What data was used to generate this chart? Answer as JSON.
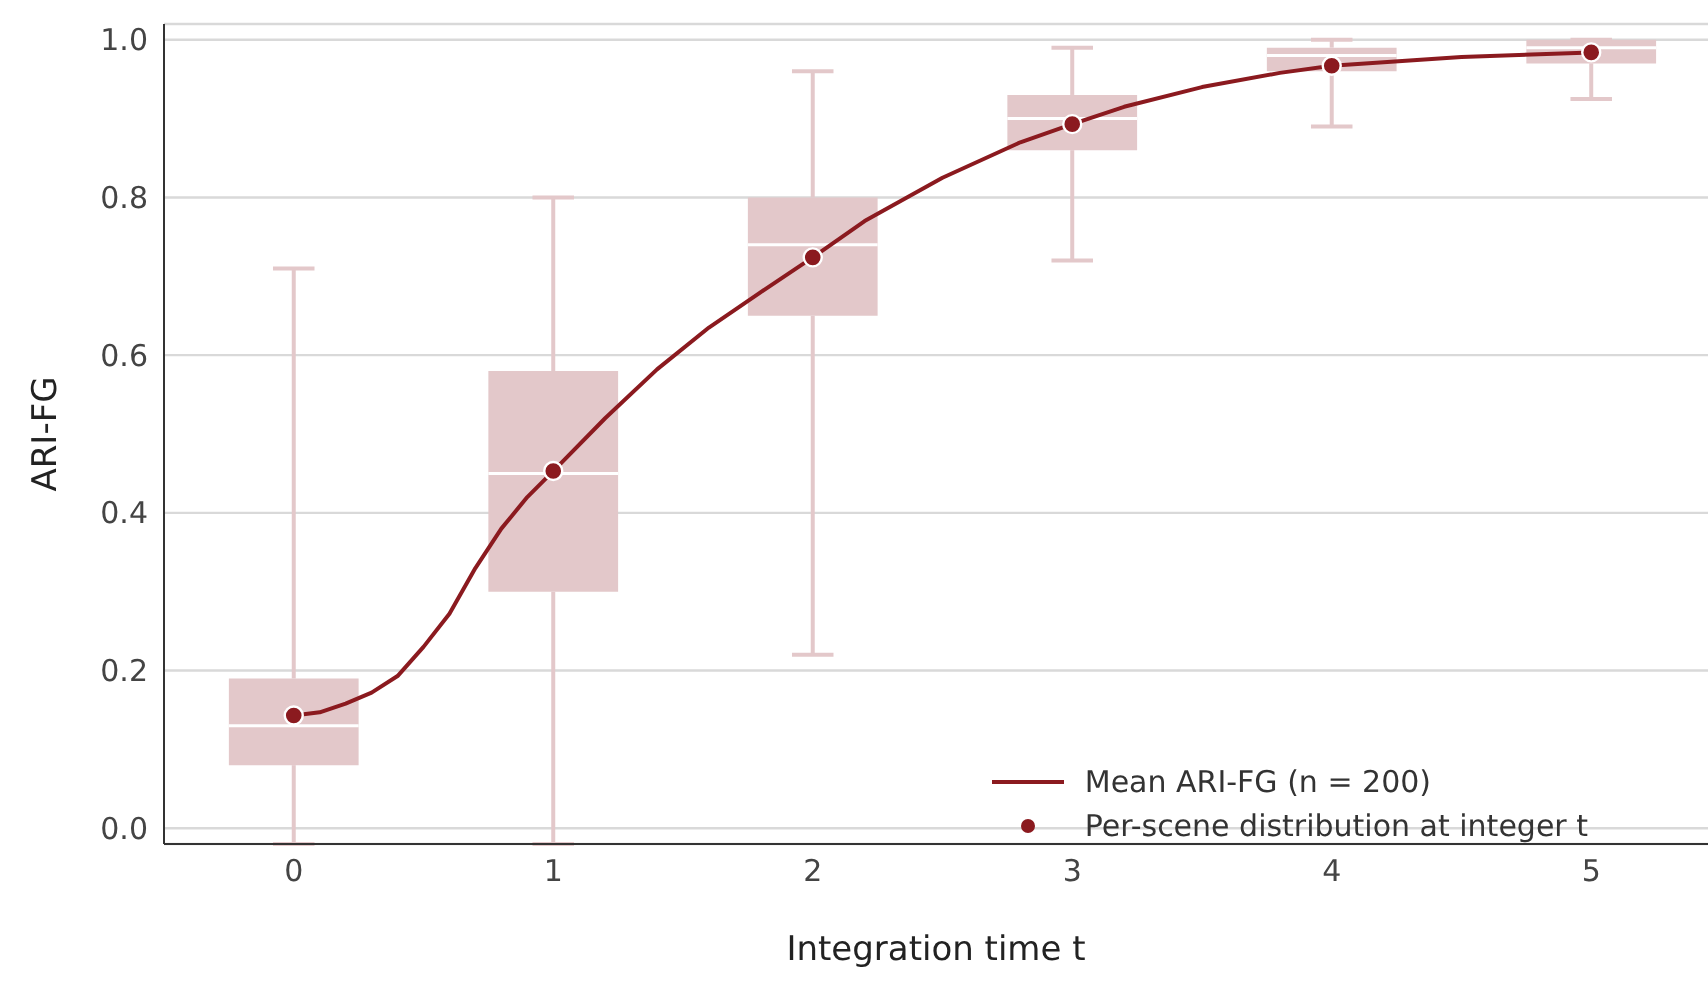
{
  "chart_data": {
    "type": "line",
    "xlabel": "Integration time t",
    "ylabel": "ARI-FG",
    "xlim": [
      -0.5,
      5.45
    ],
    "ylim": [
      -0.02,
      1.02
    ],
    "xticks": [
      0,
      1,
      2,
      3,
      4,
      5
    ],
    "yticks": [
      {
        "value": 0,
        "label": "0.0"
      },
      {
        "value": 0.2,
        "label": "0.2"
      },
      {
        "value": 0.4,
        "label": "0.4"
      },
      {
        "value": 0.6,
        "label": "0.6"
      },
      {
        "value": 0.8,
        "label": "0.8"
      },
      {
        "value": 1,
        "label": "1.0"
      }
    ],
    "grid": "y",
    "legend": "bottom right",
    "series": [
      {
        "type": "box",
        "color": "#e3c8ca",
        "x": [
          0,
          1,
          2,
          3,
          4,
          5
        ],
        "boxes": [
          {
            "low": -0.02,
            "q1": 0.08,
            "median": 0.13,
            "q3": 0.19,
            "high": 0.71
          },
          {
            "low": -0.02,
            "q1": 0.3,
            "median": 0.45,
            "q3": 0.58,
            "high": 0.8
          },
          {
            "low": 0.22,
            "q1": 0.65,
            "median": 0.74,
            "q3": 0.8,
            "high": 0.96
          },
          {
            "low": 0.72,
            "q1": 0.86,
            "median": 0.9,
            "q3": 0.93,
            "high": 0.99
          },
          {
            "low": 0.89,
            "q1": 0.96,
            "median": 0.98,
            "q3": 0.99,
            "high": 1.0
          },
          {
            "low": 0.925,
            "q1": 0.97,
            "median": 0.99,
            "q3": 1.0,
            "high": 1.0
          }
        ]
      },
      {
        "type": "line",
        "name": "Mean ARI-FG (n = 200)",
        "color": "#8b1a1f",
        "marker": "none",
        "line_style": "solid",
        "x": [
          0,
          0.1,
          0.2,
          0.3,
          0.4,
          0.5,
          0.6,
          0.7,
          0.8,
          0.9,
          1.0,
          1.2,
          1.4,
          1.6,
          1.8,
          2.0,
          2.2,
          2.5,
          2.8,
          3.0,
          3.2,
          3.5,
          3.8,
          4.0,
          4.5,
          5.0
        ],
        "values": [
          0.143,
          0.147,
          0.158,
          0.172,
          0.193,
          0.23,
          0.272,
          0.33,
          0.38,
          0.42,
          0.453,
          0.52,
          0.582,
          0.635,
          0.68,
          0.724,
          0.77,
          0.825,
          0.87,
          0.893,
          0.915,
          0.94,
          0.958,
          0.967,
          0.978,
          0.984
        ]
      },
      {
        "type": "scatter",
        "name": "Per-scene distribution at integer t",
        "color": "#8b1a1f",
        "marker": "circle",
        "x": [
          0,
          1,
          2,
          3,
          4,
          5
        ],
        "values": [
          0.143,
          0.453,
          0.724,
          0.893,
          0.967,
          0.984
        ]
      }
    ]
  }
}
